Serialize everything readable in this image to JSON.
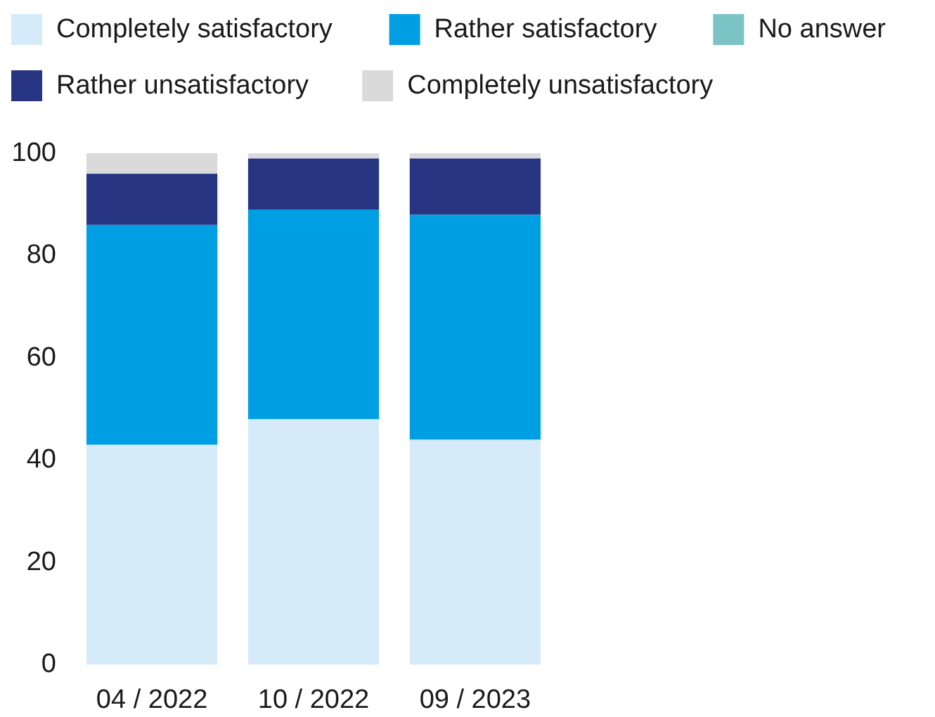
{
  "chart_data": {
    "type": "bar",
    "stacked": true,
    "categories": [
      "04 / 2022",
      "10 / 2022",
      "09 / 2023"
    ],
    "series": [
      {
        "name": "Completely satisfactory",
        "color": "#d5ebfa",
        "values": [
          43,
          48,
          44
        ]
      },
      {
        "name": "Rather satisfactory",
        "color": "#009fe3",
        "values": [
          43,
          41,
          44
        ]
      },
      {
        "name": "No answer",
        "color": "#7bc3c5",
        "values": [
          0,
          0,
          0
        ]
      },
      {
        "name": "Rather unsatisfactory",
        "color": "#283583",
        "values": [
          10,
          10,
          11
        ]
      },
      {
        "name": "Completely unsatisfactory",
        "color": "#dadada",
        "values": [
          4,
          1,
          1
        ]
      }
    ],
    "ylim": [
      0,
      100
    ],
    "yticks": [
      0,
      20,
      40,
      60,
      80,
      100
    ],
    "legend": "top",
    "grid": false
  }
}
